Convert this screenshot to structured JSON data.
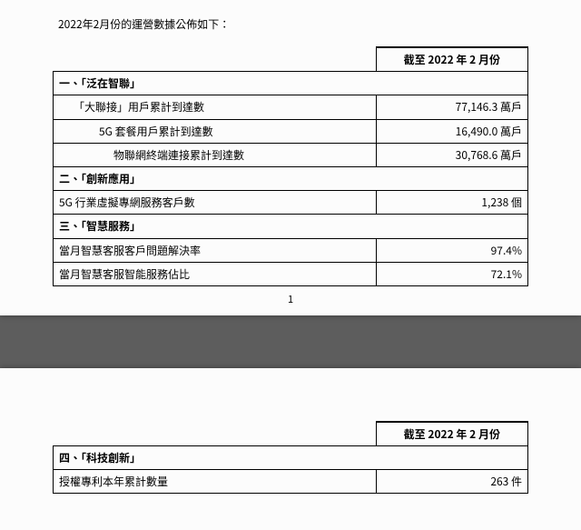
{
  "intro": "2022年2月份的運營數據公佈如下：",
  "header": "截至 2022 年 2 月份",
  "pageNumber": "1",
  "table1": {
    "sections": [
      {
        "title": "一、「泛在智聯」",
        "rows": [
          {
            "label": "「大聯接」用戶累計到達數",
            "value": "77,146.3 萬戶",
            "indent": 1
          },
          {
            "label": "5G 套餐用戶累計到達數",
            "value": "16,490.0 萬戶",
            "indent": 2
          },
          {
            "label": "物聯網終端連接累計到達數",
            "value": "30,768.6 萬戶",
            "indent": 3
          }
        ]
      },
      {
        "title": "二、「創新應用」",
        "rows": [
          {
            "label": "5G 行業虛擬專網服務客戶數",
            "value": "1,238 個",
            "indent": 0
          }
        ]
      },
      {
        "title": "三、「智慧服務」",
        "rows": [
          {
            "label": "當月智慧客服客戶問題解決率",
            "value": "97.4%",
            "indent": 0
          },
          {
            "label": "當月智慧客服智能服務佔比",
            "value": "72.1%",
            "indent": 0
          }
        ]
      }
    ]
  },
  "table2": {
    "sections": [
      {
        "title": "四、「科技創新」",
        "rows": [
          {
            "label": "授權專利本年累計數量",
            "value": "263 件",
            "indent": 0
          }
        ]
      }
    ]
  },
  "style": {
    "pageBackground": "#fcfcfc",
    "bodyBackground": "#5d5d5d",
    "borderColor": "#000000",
    "fontSize": 12,
    "colLabelWidth": "68%",
    "colValueWidth": "32%"
  }
}
